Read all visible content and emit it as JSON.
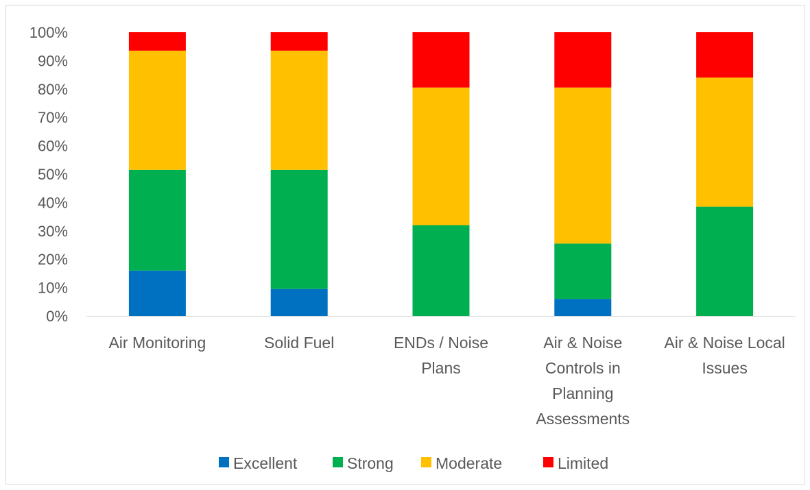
{
  "chart_data": {
    "type": "bar",
    "stacked": "percent",
    "title": "",
    "xlabel": "",
    "ylabel": "",
    "ylim": [
      0,
      100
    ],
    "yticks": [
      "0%",
      "10%",
      "20%",
      "30%",
      "40%",
      "50%",
      "60%",
      "70%",
      "80%",
      "90%",
      "100%"
    ],
    "grid": false,
    "legend_position": "bottom",
    "categories": [
      [
        "Air Monitoring"
      ],
      [
        "Solid Fuel"
      ],
      [
        "ENDs / Noise",
        "Plans"
      ],
      [
        "Air & Noise",
        "Controls in",
        "Planning",
        "Assessments"
      ],
      [
        "Air & Noise Local",
        "Issues"
      ]
    ],
    "series": [
      {
        "name": "Excellent",
        "color": "#0070C0",
        "values": [
          16,
          9.5,
          0,
          6,
          0
        ]
      },
      {
        "name": "Strong",
        "color": "#00B050",
        "values": [
          35.5,
          42,
          32,
          19.5,
          38.5
        ]
      },
      {
        "name": "Moderate",
        "color": "#FFC000",
        "values": [
          42,
          42,
          48.5,
          55,
          45.5
        ]
      },
      {
        "name": "Limited",
        "color": "#FF0000",
        "values": [
          6.5,
          6.5,
          19.5,
          19.5,
          16
        ]
      }
    ]
  }
}
